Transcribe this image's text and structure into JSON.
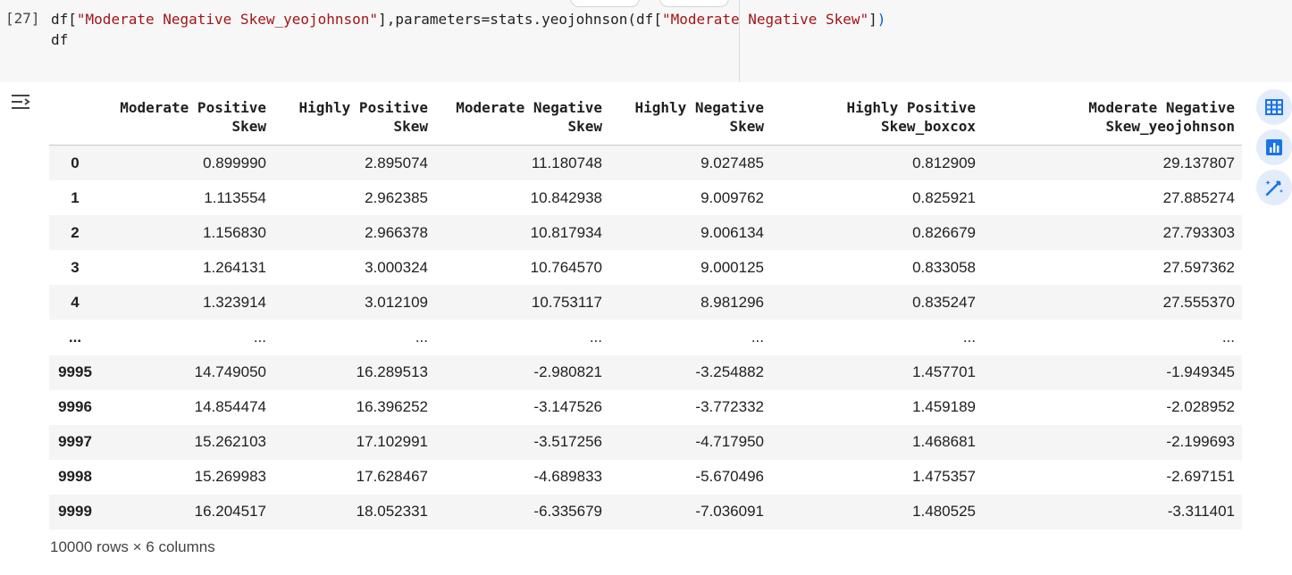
{
  "cell": {
    "execution_count": "[27]",
    "code_line1_parts": [
      "df[",
      "\"Moderate Negative Skew_yeojohnson\"",
      "],parameters=stats.yeojohnson(df[",
      "\"Moderate Negative Skew\"",
      "]",
      ")"
    ],
    "code_line2": "df"
  },
  "table": {
    "columns": [
      "Moderate Positive Skew",
      "Highly Positive Skew",
      "Moderate Negative Skew",
      "Highly Negative Skew",
      "Highly Positive Skew_boxcox",
      "Moderate Negative Skew_yeojohnson"
    ],
    "rows": [
      {
        "index": "0",
        "values": [
          "0.899990",
          "2.895074",
          "11.180748",
          "9.027485",
          "0.812909",
          "29.137807"
        ]
      },
      {
        "index": "1",
        "values": [
          "1.113554",
          "2.962385",
          "10.842938",
          "9.009762",
          "0.825921",
          "27.885274"
        ]
      },
      {
        "index": "2",
        "values": [
          "1.156830",
          "2.966378",
          "10.817934",
          "9.006134",
          "0.826679",
          "27.793303"
        ]
      },
      {
        "index": "3",
        "values": [
          "1.264131",
          "3.000324",
          "10.764570",
          "9.000125",
          "0.833058",
          "27.597362"
        ]
      },
      {
        "index": "4",
        "values": [
          "1.323914",
          "3.012109",
          "10.753117",
          "8.981296",
          "0.835247",
          "27.555370"
        ]
      },
      {
        "index": "...",
        "values": [
          "...",
          "...",
          "...",
          "...",
          "...",
          "..."
        ]
      },
      {
        "index": "9995",
        "values": [
          "14.749050",
          "16.289513",
          "-2.980821",
          "-3.254882",
          "1.457701",
          "-1.949345"
        ]
      },
      {
        "index": "9996",
        "values": [
          "14.854474",
          "16.396252",
          "-3.147526",
          "-3.772332",
          "1.459189",
          "-2.028952"
        ]
      },
      {
        "index": "9997",
        "values": [
          "15.262103",
          "17.102991",
          "-3.517256",
          "-4.717950",
          "1.468681",
          "-2.199693"
        ]
      },
      {
        "index": "9998",
        "values": [
          "15.269983",
          "17.628467",
          "-4.689833",
          "-5.670496",
          "1.475357",
          "-2.697151"
        ]
      },
      {
        "index": "9999",
        "values": [
          "16.204517",
          "18.052331",
          "-6.335679",
          "-7.036091",
          "1.480525",
          "-3.311401"
        ]
      }
    ],
    "footer": "10000 rows × 6 columns"
  },
  "icons": {
    "output_toggle": "output-collapse-icon",
    "side_buttons": [
      "table-icon",
      "bar-chart-icon",
      "magic-pen-icon"
    ]
  },
  "colors": {
    "string": "#a31515",
    "accent": "#1a73e8",
    "side_button_bg": "#e3ecfb"
  }
}
